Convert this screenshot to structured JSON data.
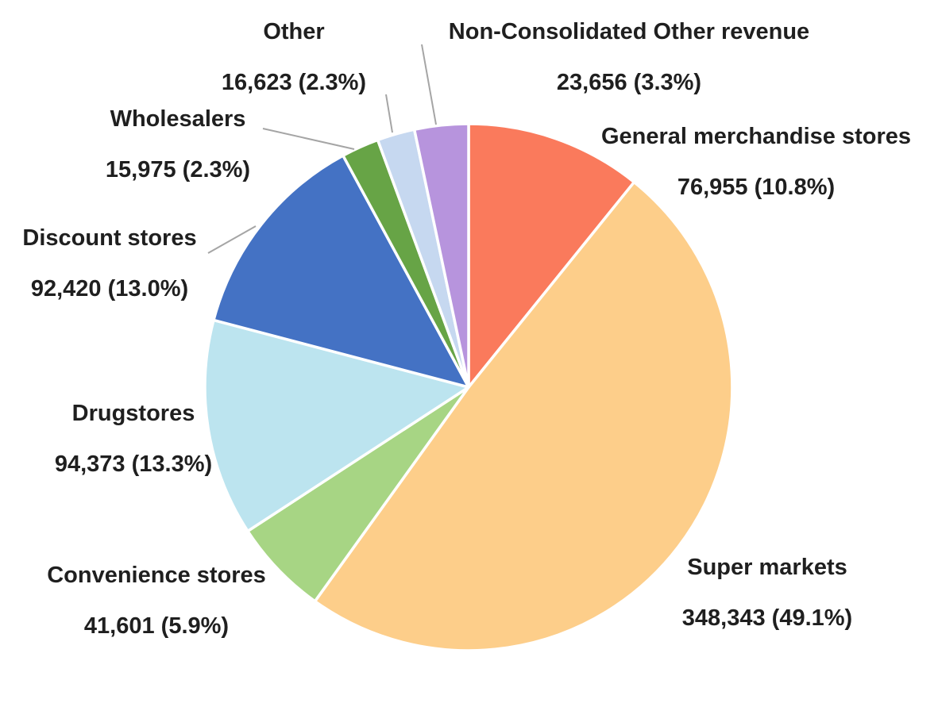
{
  "chart_data": {
    "type": "pie",
    "title": "",
    "direction": "clockwise",
    "start_angle_deg": 0,
    "legend_position": "none",
    "labels_position": "outside-with-leader-lines",
    "slices": [
      {
        "name": "General merchandise stores",
        "value": 76955,
        "pct": 10.8,
        "display": "76,955 (10.8%)",
        "color": "#fa7a5c"
      },
      {
        "name": "Super markets",
        "value": 348343,
        "pct": 49.1,
        "display": "348,343 (49.1%)",
        "color": "#fdce8a"
      },
      {
        "name": "Convenience stores",
        "value": 41601,
        "pct": 5.9,
        "display": "41,601 (5.9%)",
        "color": "#a7d584"
      },
      {
        "name": "Drugstores",
        "value": 94373,
        "pct": 13.3,
        "display": "94,373 (13.3%)",
        "color": "#bce4ef"
      },
      {
        "name": "Discount stores",
        "value": 92420,
        "pct": 13.0,
        "display": "92,420 (13.0%)",
        "color": "#4472c4"
      },
      {
        "name": "Wholesalers",
        "value": 15975,
        "pct": 2.3,
        "display": "15,975 (2.3%)",
        "color": "#67a446"
      },
      {
        "name": "Other",
        "value": 16623,
        "pct": 2.3,
        "display": "16,623 (2.3%)",
        "color": "#c6d8f0"
      },
      {
        "name": "Non-Consolidated Other revenue",
        "value": 23656,
        "pct": 3.3,
        "display": "23,656 (3.3%)",
        "color": "#b794dd"
      }
    ]
  },
  "style": {
    "background": "#ffffff",
    "text_color": "#1f1f1f",
    "slice_border_color": "#ffffff",
    "leader_line_color": "#a5a5a5"
  }
}
